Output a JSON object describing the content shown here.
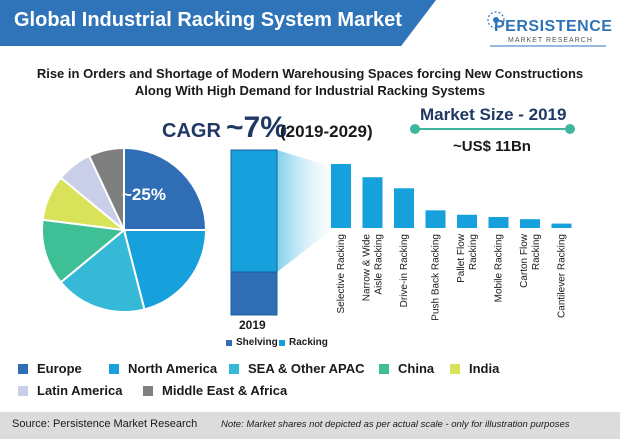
{
  "header": {
    "title": "Global Industrial Racking System Market",
    "logo_name": "PERSISTENCE",
    "logo_sub": "MARKET RESEARCH"
  },
  "subtitle": {
    "line1": "Rise in Orders and Shortage of Modern Warehousing Spaces forcing New Constructions",
    "line2": "Along With High Demand for Industrial Racking Systems"
  },
  "cagr": {
    "label": "CAGR",
    "value": "~7%",
    "period": "(2019-2029)"
  },
  "market_size": {
    "label": "Market Size - 2019",
    "value": "~US$ 11Bn"
  },
  "colors": {
    "banner": "#2f73b8",
    "europe": "#2f6db5",
    "north_america": "#16a0dc",
    "sea_apac": "#35b9d6",
    "china": "#3fbf95",
    "india": "#d8e35a",
    "latin_america": "#c9cfe8",
    "mea": "#7f7f7f",
    "shelving": "#2f6db5",
    "racking": "#16a0dc",
    "accent_line": "#3fb7a0"
  },
  "chart_data": [
    {
      "type": "pie",
      "labels": [
        "Europe",
        "North America",
        "SEA & Other APAC",
        "China",
        "India",
        "Latin America",
        "Middle East & Africa"
      ],
      "values": [
        25,
        21,
        18,
        13,
        9,
        7,
        7
      ],
      "data_labels": [
        {
          "label": "Europe",
          "text": "~25%"
        }
      ]
    },
    {
      "type": "bar",
      "title": "2019",
      "categories": [
        "2019"
      ],
      "series": [
        {
          "name": "Shelving",
          "values": [
            26
          ]
        },
        {
          "name": "Racking",
          "values": [
            74
          ]
        }
      ]
    },
    {
      "type": "bar",
      "categories": [
        "Selective Racking",
        "Narrow & Wide Aisle Racking",
        "Drive-in Racking",
        "Push Back Racking",
        "Pallet Flow Racking",
        "Mobile Racking",
        "Carton Flow Racking",
        "Cantilever Racking"
      ],
      "values": [
        29,
        23,
        18,
        8,
        6,
        5,
        4,
        2
      ]
    }
  ],
  "footer": {
    "source": "Source: Persistence Market Research",
    "note": "Note: Market shares not depicted as per actual scale - only for illustration purposes"
  }
}
